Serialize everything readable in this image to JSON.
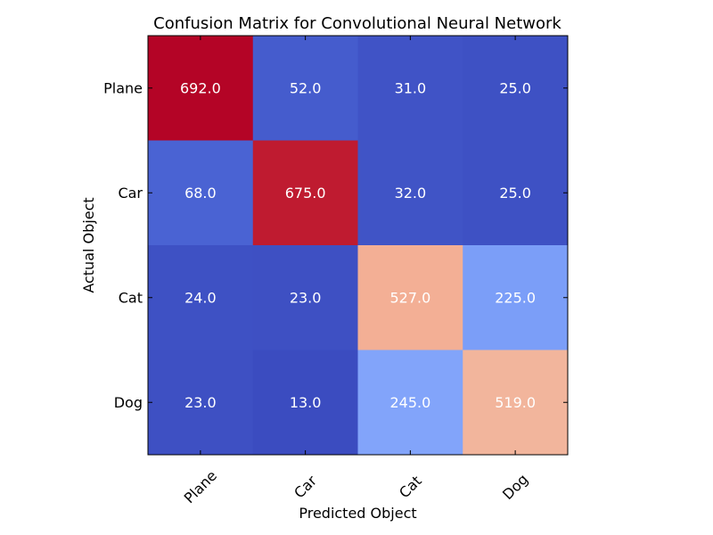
{
  "chart_data": {
    "type": "heatmap",
    "title": "Confusion Matrix for Convolutional Neural Network",
    "xlabel": "Predicted Object",
    "ylabel": "Actual Object",
    "x_categories": [
      "Plane",
      "Car",
      "Cat",
      "Dog"
    ],
    "y_categories": [
      "Plane",
      "Car",
      "Cat",
      "Dog"
    ],
    "values": [
      [
        692.0,
        52.0,
        31.0,
        25.0
      ],
      [
        68.0,
        675.0,
        32.0,
        25.0
      ],
      [
        24.0,
        23.0,
        527.0,
        225.0
      ],
      [
        23.0,
        13.0,
        245.0,
        519.0
      ]
    ],
    "value_labels": [
      [
        "692.0",
        "52.0",
        "31.0",
        "25.0"
      ],
      [
        "68.0",
        "675.0",
        "32.0",
        "25.0"
      ],
      [
        "24.0",
        "23.0",
        "527.0",
        "225.0"
      ],
      [
        "23.0",
        "13.0",
        "245.0",
        "519.0"
      ]
    ],
    "colormap": "coolwarm",
    "grid": false,
    "colors": {
      "text": "#ffffff",
      "axis": "#000000",
      "background": "#ffffff"
    }
  }
}
